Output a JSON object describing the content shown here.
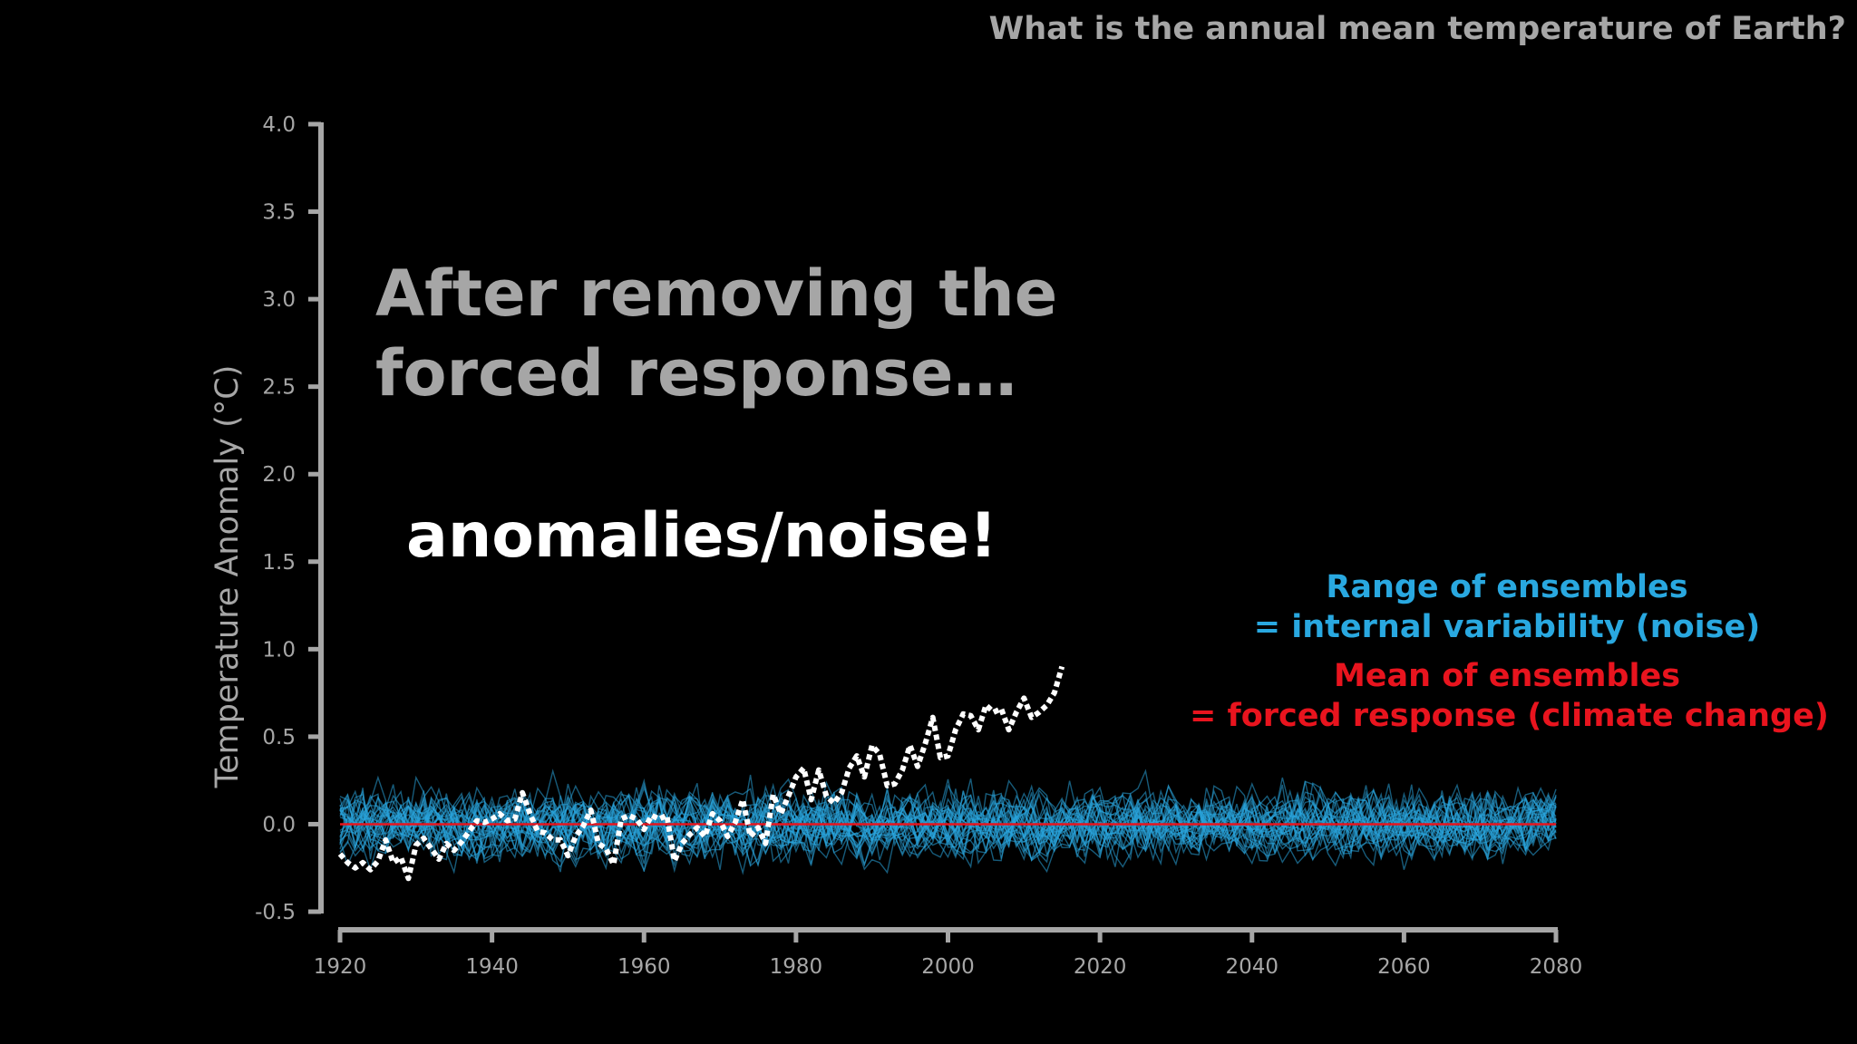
{
  "slide_title": "What is the annual mean temperature of Earth?",
  "headline_line1": "After removing the",
  "headline_line2": "forced response…",
  "headline_emphasis": "anomalies/noise!",
  "legend": {
    "ensemble_range_line1": "Range of ensembles",
    "ensemble_range_line2": "= internal variability (noise)",
    "ensemble_mean_line1": "Mean of ensembles",
    "ensemble_mean_line2": "= forced response (climate change)"
  },
  "colors": {
    "background": "#000000",
    "axis": "#a6a6a6",
    "ensemble": "#2aa6de",
    "mean": "#e8141e",
    "observed": "#ffffff"
  },
  "chart_data": {
    "type": "line",
    "title": "",
    "xlabel": "",
    "ylabel": "Temperature Anomaly (°C)",
    "xlim": [
      1920,
      2080
    ],
    "ylim": [
      -0.5,
      4.0
    ],
    "x_ticks": [
      "1920",
      "1940",
      "1960",
      "1980",
      "2000",
      "2020",
      "2040",
      "2060",
      "2080"
    ],
    "y_ticks": [
      "4.0",
      "3.5",
      "3.0",
      "2.5",
      "2.0",
      "1.5",
      "1.0",
      "0.5",
      "0.0",
      "-0.5"
    ],
    "grid": false,
    "ensemble_member_count": 30,
    "ensemble_spread": 0.13,
    "series": [
      {
        "name": "Range of ensembles",
        "style": "thin cyan lines, one per ensemble member",
        "x": [
          1920,
          2080
        ],
        "values": [
          0.0,
          0.0
        ]
      },
      {
        "name": "Mean of ensembles",
        "style": "solid red line",
        "x": [
          1920,
          2080
        ],
        "values": [
          0.0,
          0.0
        ]
      },
      {
        "name": "Observed",
        "style": "white dotted line",
        "x": [
          1920,
          1921,
          1922,
          1923,
          1924,
          1925,
          1926,
          1927,
          1928,
          1929,
          1930,
          1931,
          1932,
          1933,
          1934,
          1935,
          1936,
          1937,
          1938,
          1939,
          1940,
          1941,
          1942,
          1943,
          1944,
          1945,
          1946,
          1947,
          1948,
          1949,
          1950,
          1951,
          1952,
          1953,
          1954,
          1955,
          1956,
          1957,
          1958,
          1959,
          1960,
          1961,
          1962,
          1963,
          1964,
          1965,
          1966,
          1967,
          1968,
          1969,
          1970,
          1971,
          1972,
          1973,
          1974,
          1975,
          1976,
          1977,
          1978,
          1979,
          1980,
          1981,
          1982,
          1983,
          1984,
          1985,
          1986,
          1987,
          1988,
          1989,
          1990,
          1991,
          1992,
          1993,
          1994,
          1995,
          1996,
          1997,
          1998,
          1999,
          2000,
          2001,
          2002,
          2003,
          2004,
          2005,
          2006,
          2007,
          2008,
          2009,
          2010,
          2011,
          2012,
          2013,
          2014,
          2015
        ],
        "values": [
          -0.17,
          -0.22,
          -0.25,
          -0.22,
          -0.26,
          -0.21,
          -0.09,
          -0.22,
          -0.19,
          -0.31,
          -0.12,
          -0.08,
          -0.14,
          -0.2,
          -0.11,
          -0.15,
          -0.1,
          -0.04,
          0.02,
          0.01,
          0.03,
          0.06,
          0.02,
          0.03,
          0.18,
          0.06,
          -0.04,
          -0.05,
          -0.09,
          -0.09,
          -0.18,
          -0.07,
          -0.01,
          0.08,
          -0.11,
          -0.14,
          -0.23,
          0.03,
          0.05,
          0.03,
          -0.03,
          0.05,
          0.03,
          0.05,
          -0.21,
          -0.11,
          -0.06,
          -0.02,
          -0.07,
          0.06,
          0.02,
          -0.07,
          0.01,
          0.14,
          -0.07,
          -0.02,
          -0.11,
          0.17,
          0.06,
          0.16,
          0.27,
          0.32,
          0.14,
          0.31,
          0.16,
          0.12,
          0.18,
          0.32,
          0.39,
          0.27,
          0.45,
          0.4,
          0.22,
          0.23,
          0.31,
          0.45,
          0.33,
          0.46,
          0.61,
          0.38,
          0.39,
          0.54,
          0.63,
          0.62,
          0.54,
          0.68,
          0.64,
          0.66,
          0.54,
          0.64,
          0.72,
          0.61,
          0.64,
          0.68,
          0.75,
          0.9
        ]
      }
    ]
  }
}
